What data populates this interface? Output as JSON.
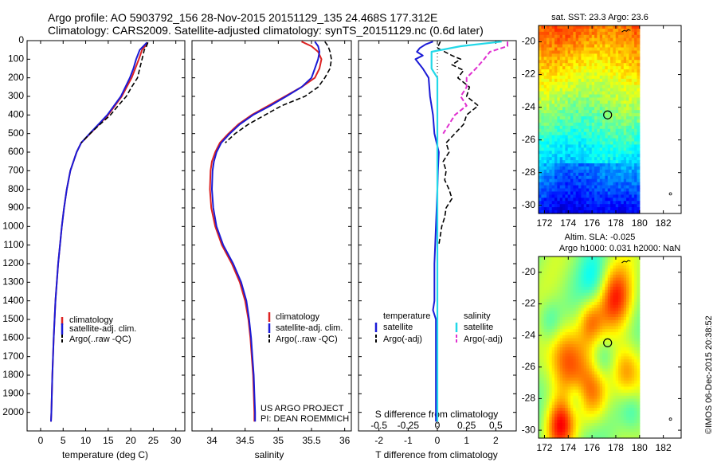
{
  "header": {
    "line1": "Argo profile: AO 5903792_156 28-Nov-2015 20151129_135 24.468S 177.312E",
    "line2": "Climatology: CARS2009. Satellite-adjusted climatology: synTS_20151129.nc (0.6d later)"
  },
  "credits": {
    "project": "US ARGO PROJECT",
    "pi": "PI: DEAN ROEMMICH",
    "imos": "©IMOS 06-Dec-2015 20:38:52"
  },
  "colors": {
    "climatology": "#dd2222",
    "satellite": "#1a1ad6",
    "argo": "#000000",
    "sal_satellite": "#22d8e8",
    "sal_argo": "#e030d0"
  },
  "chart_data": [
    {
      "type": "line",
      "name": "temperature-profile",
      "xlabel": "temperature (deg C)",
      "ylabel": "",
      "xlim": [
        -3,
        32
      ],
      "ylim": [
        2100,
        0
      ],
      "xticks": [
        0,
        5,
        10,
        15,
        20,
        25,
        30
      ],
      "yticks": [
        0,
        100,
        200,
        300,
        400,
        500,
        600,
        700,
        800,
        900,
        1000,
        1100,
        1200,
        1300,
        1400,
        1500,
        1600,
        1700,
        1800,
        1900,
        2000
      ],
      "legend": [
        "climatology",
        "satellite-adj. clim.",
        "Argo(..raw -QC)"
      ],
      "series": [
        {
          "name": "climatology",
          "depth": [
            10,
            30,
            50,
            100,
            150,
            200,
            300,
            400,
            500,
            550,
            600,
            700,
            800,
            900,
            1000,
            1200,
            1400,
            1600,
            1800,
            2000,
            2050
          ],
          "values": [
            23.8,
            23.2,
            22.5,
            21.8,
            21.0,
            20.2,
            18.0,
            15.0,
            11.0,
            9.0,
            8.0,
            6.6,
            5.8,
            5.2,
            4.7,
            3.9,
            3.3,
            2.9,
            2.6,
            2.4,
            2.3
          ]
        },
        {
          "name": "satellite-adj. clim.",
          "depth": [
            10,
            30,
            50,
            100,
            150,
            200,
            300,
            400,
            500,
            550,
            600,
            700,
            800,
            900,
            1000,
            1200,
            1400,
            1600,
            1800,
            2000,
            2050
          ],
          "values": [
            23.6,
            22.8,
            22.0,
            21.2,
            20.6,
            19.8,
            17.8,
            14.8,
            10.9,
            9.0,
            8.0,
            6.6,
            5.8,
            5.2,
            4.7,
            3.9,
            3.3,
            2.9,
            2.6,
            2.4,
            2.3
          ]
        },
        {
          "name": "Argo(..raw -QC)",
          "depth": [
            10,
            30,
            50,
            100,
            150,
            200,
            250,
            300,
            350,
            400,
            450,
            500,
            550
          ],
          "values": [
            23.8,
            23.5,
            23.0,
            22.5,
            22.0,
            21.5,
            20.2,
            19.0,
            17.2,
            15.5,
            13.2,
            11.0,
            9.0
          ]
        }
      ]
    },
    {
      "type": "line",
      "name": "salinity-profile",
      "xlabel": "salinity",
      "xlim": [
        33.7,
        36.1
      ],
      "ylim": [
        2100,
        0
      ],
      "xticks": [
        34,
        34.5,
        35,
        35.5,
        36
      ],
      "legend": [
        "climatology",
        "satellite-adj. clim.",
        "Argo(..raw -QC)"
      ],
      "series": [
        {
          "name": "climatology",
          "depth": [
            5,
            30,
            60,
            100,
            150,
            200,
            250,
            300,
            350,
            400,
            450,
            500,
            550,
            600,
            650,
            700,
            800,
            900,
            1000,
            1100,
            1200,
            1300,
            1400,
            1500,
            1600,
            1700,
            1800,
            1900,
            2000,
            2050
          ],
          "values": [
            35.35,
            35.5,
            35.6,
            35.65,
            35.62,
            35.55,
            35.35,
            35.1,
            34.85,
            34.6,
            34.4,
            34.25,
            34.12,
            34.05,
            34.0,
            33.98,
            33.97,
            33.99,
            34.05,
            34.15,
            34.3,
            34.42,
            34.5,
            34.55,
            34.58,
            34.6,
            34.62,
            34.63,
            34.64,
            34.64
          ]
        },
        {
          "name": "satellite-adj. clim.",
          "depth": [
            5,
            30,
            60,
            100,
            150,
            200,
            250,
            300,
            350,
            400,
            450,
            500,
            550,
            600,
            650,
            700,
            800,
            900,
            1000,
            1100,
            1200,
            1300,
            1400,
            1500,
            1600,
            1700,
            1800,
            1900,
            2000,
            2050
          ],
          "values": [
            35.55,
            35.6,
            35.62,
            35.6,
            35.55,
            35.5,
            35.35,
            35.12,
            34.88,
            34.62,
            34.42,
            34.27,
            34.14,
            34.07,
            34.03,
            34.01,
            34.0,
            34.02,
            34.07,
            34.17,
            34.32,
            34.44,
            34.52,
            34.56,
            34.59,
            34.61,
            34.63,
            34.64,
            34.65,
            34.65
          ]
        },
        {
          "name": "Argo(..raw -QC)",
          "depth": [
            5,
            30,
            60,
            100,
            150,
            200,
            250,
            300,
            350,
            400,
            450,
            500,
            550
          ],
          "values": [
            35.7,
            35.75,
            35.78,
            35.8,
            35.78,
            35.7,
            35.6,
            35.4,
            35.05,
            34.8,
            34.55,
            34.35,
            34.2
          ]
        }
      ]
    },
    {
      "type": "line",
      "name": "difference-profile",
      "xlabel": "T difference from climatology",
      "xlabel_top": "S difference from climatology",
      "xlim": [
        -2.7,
        2.7
      ],
      "ylim": [
        2100,
        0
      ],
      "xticks_T": [
        -2,
        -1,
        0,
        1,
        2
      ],
      "xticks_S": [
        -0.5,
        -0.25,
        0,
        0.25,
        0.5
      ],
      "legend": [
        "temperature",
        "satellite",
        "Argo(-adj)",
        "salinity",
        "satellite",
        "Argo(-adj)"
      ],
      "series": [
        {
          "name": "temperature satellite",
          "depth": [
            5,
            20,
            40,
            60,
            80,
            100,
            150,
            200,
            300,
            400,
            500,
            600,
            700,
            800,
            1000,
            1200,
            1400,
            1450,
            1500,
            1800,
            2050
          ],
          "values": [
            -0.15,
            -0.4,
            -0.6,
            -0.7,
            -0.5,
            -0.75,
            -0.5,
            -0.3,
            -0.25,
            -0.15,
            -0.1,
            0.05,
            0.02,
            0.0,
            -0.05,
            -0.1,
            -0.1,
            -0.15,
            -0.05,
            -0.05,
            -0.05
          ]
        },
        {
          "name": "temperature Argo(-adj)",
          "depth": [
            5,
            40,
            80,
            100,
            130,
            160,
            200,
            250,
            300,
            350,
            400,
            450,
            500,
            550,
            600,
            650,
            700,
            750,
            800,
            850,
            900,
            950,
            1000,
            1050,
            1100
          ],
          "values": [
            0.1,
            0.0,
            0.5,
            0.8,
            0.5,
            0.9,
            0.7,
            1.1,
            1.0,
            1.4,
            1.0,
            0.9,
            0.6,
            0.3,
            0.4,
            0.2,
            0.3,
            0.25,
            0.4,
            0.5,
            0.3,
            0.25,
            0.15,
            0.1,
            0.05
          ]
        },
        {
          "name": "salinity satellite",
          "depth": [
            5,
            30,
            60,
            100,
            150,
            200,
            300,
            400,
            500,
            600,
            800,
            1000,
            1500,
            2050
          ],
          "values": [
            0.55,
            0.2,
            -0.05,
            -0.05,
            -0.05,
            0.0,
            0.0,
            0.0,
            0.0,
            0.0,
            0.0,
            0.0,
            0.0,
            0.0
          ]
        },
        {
          "name": "salinity Argo(-adj)",
          "depth": [
            5,
            30,
            60,
            100,
            150,
            200,
            250,
            300,
            350,
            400,
            450,
            500
          ],
          "values": [
            0.6,
            0.6,
            0.45,
            0.4,
            0.33,
            0.25,
            0.25,
            0.2,
            0.25,
            0.15,
            0.1,
            0.05
          ]
        }
      ]
    },
    {
      "type": "heatmap",
      "name": "sst-map",
      "title": "sat. SST: 23.3  Argo: 23.6",
      "xlim": [
        171.5,
        183.5
      ],
      "ylim": [
        -30.5,
        -19.0
      ],
      "xticks": [
        172,
        174,
        176,
        178,
        180,
        182
      ],
      "yticks": [
        -20,
        -22,
        -24,
        -26,
        -28,
        -30
      ],
      "marker": {
        "lon": 177.312,
        "lat": -24.468
      }
    },
    {
      "type": "heatmap",
      "name": "sla-map",
      "title1": "Altim. SLA: -0.025",
      "title2": "Argo h1000: 0.031 h2000: NaN",
      "xlim": [
        171.5,
        183.5
      ],
      "ylim": [
        -30.5,
        -19.0
      ],
      "xticks": [
        172,
        174,
        176,
        178,
        180,
        182
      ],
      "yticks": [
        -20,
        -22,
        -24,
        -26,
        -28,
        -30
      ],
      "marker": {
        "lon": 177.312,
        "lat": -24.468
      }
    }
  ]
}
